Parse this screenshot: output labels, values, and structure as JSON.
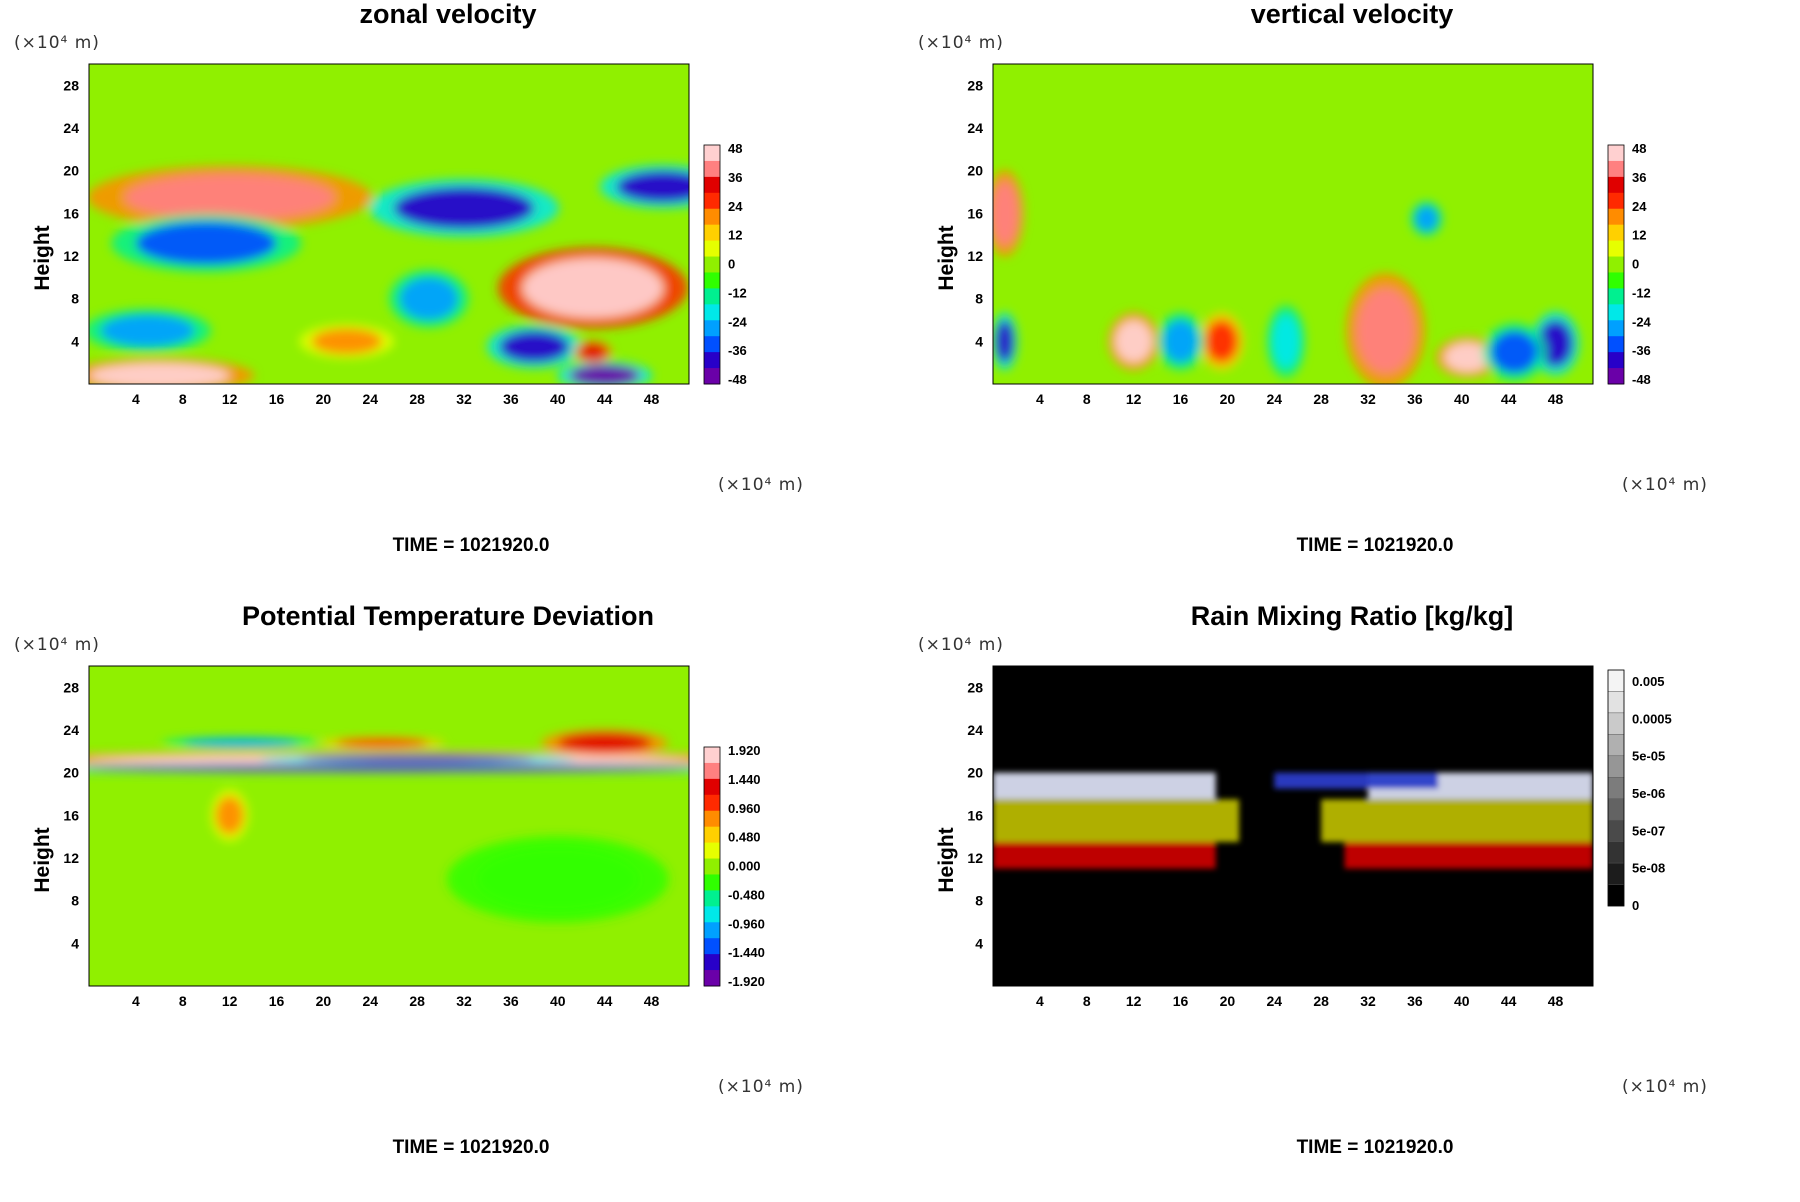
{
  "chart_data": [
    {
      "type": "heatmap",
      "title": "zonal velocity",
      "ylabel": "Height",
      "x_unit": "(×10⁴ m)",
      "y_unit": "(×10⁴ m)",
      "x_ticks": [
        "4",
        "8",
        "12",
        "16",
        "20",
        "24",
        "28",
        "32",
        "36",
        "40",
        "44",
        "48"
      ],
      "y_ticks": [
        "28",
        "24",
        "20",
        "16",
        "12",
        "8",
        "4"
      ],
      "xlim": [
        0,
        51.2
      ],
      "ylim": [
        0,
        30
      ],
      "colorbar_labels": [
        "48",
        "36",
        "24",
        "12",
        "0",
        "-12",
        "-24",
        "-36",
        "-48"
      ],
      "colorbar_range": [
        -48,
        48
      ],
      "colormap": "rainbow",
      "footer": "TIME = 1021920.0",
      "features": [
        {
          "x": 12,
          "y": 17.5,
          "value": 42,
          "rx": 9,
          "ry": 2.2
        },
        {
          "x": 6,
          "y": 0.8,
          "value": 45,
          "rx": 6,
          "ry": 1.2
        },
        {
          "x": 43,
          "y": 9,
          "value": 48,
          "rx": 6,
          "ry": 2.8
        },
        {
          "x": 32,
          "y": 16.5,
          "value": -38,
          "rx": 6,
          "ry": 2
        },
        {
          "x": 49,
          "y": 18.5,
          "value": -44,
          "rx": 4,
          "ry": 1.5
        },
        {
          "x": 10,
          "y": 13.2,
          "value": -32,
          "rx": 6,
          "ry": 2
        },
        {
          "x": 38,
          "y": 3.5,
          "value": -40,
          "rx": 3,
          "ry": 1.5
        },
        {
          "x": 44,
          "y": 0.8,
          "value": -46,
          "rx": 3,
          "ry": 1
        },
        {
          "x": 29,
          "y": 8,
          "value": -26,
          "rx": 2.5,
          "ry": 2
        },
        {
          "x": 5,
          "y": 5,
          "value": -30,
          "rx": 4,
          "ry": 1.5
        },
        {
          "x": 22,
          "y": 4,
          "value": 20,
          "rx": 3,
          "ry": 1.2
        },
        {
          "x": 43,
          "y": 3,
          "value": 36,
          "rx": 1.2,
          "ry": 0.8
        }
      ]
    },
    {
      "type": "heatmap",
      "title": "vertical velocity",
      "ylabel": "Height",
      "x_unit": "(×10⁴ m)",
      "y_unit": "(×10⁴ m)",
      "x_ticks": [
        "4",
        "8",
        "12",
        "16",
        "20",
        "24",
        "28",
        "32",
        "36",
        "40",
        "44",
        "48"
      ],
      "y_ticks": [
        "28",
        "24",
        "20",
        "16",
        "12",
        "8",
        "4"
      ],
      "xlim": [
        0,
        51.2
      ],
      "ylim": [
        0,
        30
      ],
      "colorbar_labels": [
        "48",
        "36",
        "24",
        "12",
        "0",
        "-12",
        "-24",
        "-36",
        "-48"
      ],
      "colorbar_range": [
        -48,
        48
      ],
      "colormap": "rainbow",
      "footer": "TIME = 1021920.0",
      "features": [
        {
          "x": 1,
          "y": 16,
          "value": 38,
          "rx": 1.2,
          "ry": 3
        },
        {
          "x": 12,
          "y": 4,
          "value": 46,
          "rx": 1.6,
          "ry": 2
        },
        {
          "x": 19.5,
          "y": 4,
          "value": 30,
          "rx": 1.4,
          "ry": 2
        },
        {
          "x": 33.5,
          "y": 5,
          "value": 44,
          "rx": 2.5,
          "ry": 4
        },
        {
          "x": 40.5,
          "y": 2.5,
          "value": 46,
          "rx": 2,
          "ry": 1.4
        },
        {
          "x": 48,
          "y": 3.8,
          "value": -44,
          "rx": 1.5,
          "ry": 2.2
        },
        {
          "x": 44.5,
          "y": 3,
          "value": -34,
          "rx": 2,
          "ry": 2
        },
        {
          "x": 1,
          "y": 4,
          "value": -38,
          "rx": 0.8,
          "ry": 2
        },
        {
          "x": 16,
          "y": 4,
          "value": -28,
          "rx": 1.5,
          "ry": 2
        },
        {
          "x": 25,
          "y": 4,
          "value": -24,
          "rx": 1.2,
          "ry": 2.5
        },
        {
          "x": 37,
          "y": 15.5,
          "value": -28,
          "rx": 1,
          "ry": 1.2
        }
      ]
    },
    {
      "type": "heatmap",
      "title": "Potential Temperature Deviation",
      "ylabel": "Height",
      "x_unit": "(×10⁴ m)",
      "y_unit": "(×10⁴ m)",
      "x_ticks": [
        "4",
        "8",
        "12",
        "16",
        "20",
        "24",
        "28",
        "32",
        "36",
        "40",
        "44",
        "48"
      ],
      "y_ticks": [
        "28",
        "24",
        "20",
        "16",
        "12",
        "8",
        "4"
      ],
      "xlim": [
        0,
        51.2
      ],
      "ylim": [
        0,
        30
      ],
      "colorbar_labels": [
        "1.920",
        "1.440",
        "0.960",
        "0.480",
        "0.000",
        "-0.480",
        "-0.960",
        "-1.440",
        "-1.920"
      ],
      "colorbar_range": [
        -1.92,
        1.92
      ],
      "colormap": "rainbow",
      "footer": "TIME = 1021920.0",
      "features": [
        {
          "x": 25.6,
          "y": 21.2,
          "value": 1.9,
          "rx": 26,
          "ry": 0.6
        },
        {
          "x": 25.6,
          "y": 20.4,
          "value": -1.9,
          "rx": 26,
          "ry": 0.35
        },
        {
          "x": 28,
          "y": 21.3,
          "value": -1.85,
          "rx": 10,
          "ry": 0.35
        },
        {
          "x": 13,
          "y": 22.8,
          "value": -1.2,
          "rx": 5,
          "ry": 0.4
        },
        {
          "x": 44,
          "y": 22.8,
          "value": 1.5,
          "rx": 4,
          "ry": 0.9
        },
        {
          "x": 25,
          "y": 22.8,
          "value": 1.0,
          "rx": 4,
          "ry": 0.4
        },
        {
          "x": 12,
          "y": 16,
          "value": 0.7,
          "rx": 1.2,
          "ry": 1.8
        },
        {
          "x": 40,
          "y": 10,
          "value": -0.3,
          "rx": 7,
          "ry": 3
        }
      ]
    },
    {
      "type": "heatmap",
      "title": "Rain Mixing Ratio [kg/kg]",
      "ylabel": "Height",
      "x_unit": "(×10⁴ m)",
      "y_unit": "(×10⁴ m)",
      "x_ticks": [
        "4",
        "8",
        "12",
        "16",
        "20",
        "24",
        "28",
        "32",
        "36",
        "40",
        "44",
        "48"
      ],
      "y_ticks": [
        "28",
        "24",
        "20",
        "16",
        "12",
        "8",
        "4"
      ],
      "xlim": [
        0,
        51.2
      ],
      "ylim": [
        0,
        30
      ],
      "colorbar_labels": [
        "0.005",
        "0.0005",
        "5e-05",
        "5e-06",
        "5e-07",
        "5e-08",
        "0"
      ],
      "colormap": "grayscale-log",
      "footer": "TIME = 1021920.0",
      "features": [
        {
          "band": "white",
          "y_range": [
            17.5,
            20
          ],
          "x_ranges": [
            [
              0,
              19
            ],
            [
              32,
              51.2
            ]
          ]
        },
        {
          "band": "yellow",
          "y_range": [
            13.5,
            17.5
          ],
          "x_ranges": [
            [
              0,
              21
            ],
            [
              28,
              51.2
            ]
          ]
        },
        {
          "band": "red",
          "y_range": [
            11,
            13.5
          ],
          "x_ranges": [
            [
              0,
              19
            ],
            [
              30,
              51.2
            ]
          ]
        },
        {
          "band": "blue",
          "y_range": [
            18.5,
            20
          ],
          "x_ranges": [
            [
              24,
              38
            ]
          ]
        }
      ]
    }
  ]
}
